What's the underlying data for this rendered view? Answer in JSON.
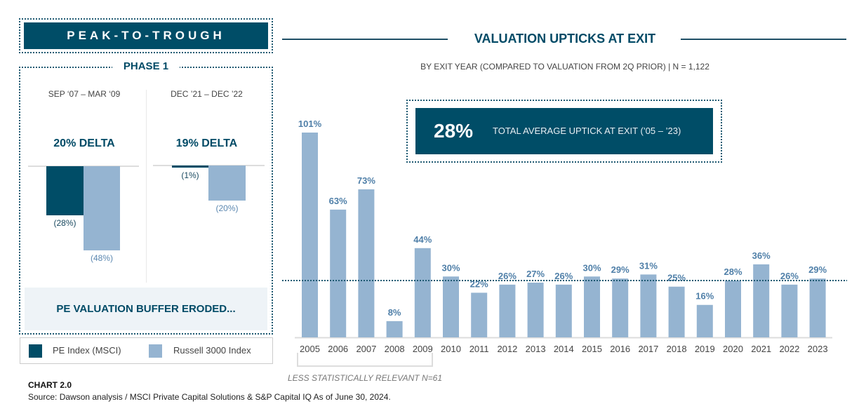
{
  "left_panel": {
    "title": "PEAK-TO-TROUGH",
    "phase_label": "PHASE 1",
    "periods": [
      {
        "range": "SEP ‘07 – MAR ‘09",
        "delta_label": "20% DELTA",
        "pe_index_label": "(28%)",
        "russell_label": "(48%)"
      },
      {
        "range": "DEC ’21 – DEC ’22",
        "delta_label": "19% DELTA",
        "pe_index_label": "(1%)",
        "russell_label": "(20%)"
      }
    ],
    "buffer_text": "PE VALUATION BUFFER ERODED...",
    "legend": [
      {
        "label": "PE Index (MSCI)",
        "color": "#004d67"
      },
      {
        "label": "Russell 3000 Index",
        "color": "#95b4d1"
      }
    ]
  },
  "right_panel": {
    "title": "VALUATION UPTICKS AT EXIT",
    "subtitle": "BY EXIT YEAR (COMPARED TO VALUATION FROM 2Q PRIOR) | N = 1,122",
    "average_value": "28%",
    "average_text": "TOTAL AVERAGE UPTICK AT EXIT (’05 – ’23)",
    "less_relevant_note": "LESS STATISTICALLY RELEVANT N=61"
  },
  "footer": {
    "chart_label": "CHART 2.0",
    "source": "Source: Dawson analysis / MSCI Private Capital Solutions & S&P Capital IQ As of June 30, 2024."
  },
  "colors": {
    "navy": "#004d67",
    "light_blue": "#95b4d1",
    "label_blue": "#4f7fa8"
  },
  "chart_data": [
    {
      "type": "bar",
      "title": "PEAK-TO-TROUGH",
      "subtitle": "PHASE 1",
      "categories": [
        "SEP ‘07 – MAR ‘09",
        "DEC ’21 – DEC ’22"
      ],
      "series": [
        {
          "name": "PE Index (MSCI)",
          "values": [
            -28,
            -1
          ]
        },
        {
          "name": "Russell 3000 Index",
          "values": [
            -48,
            -20
          ]
        }
      ],
      "annotations": [
        "20% DELTA",
        "19% DELTA"
      ],
      "ylim": [
        -50,
        0
      ],
      "legend": "bottom"
    },
    {
      "type": "bar",
      "title": "VALUATION UPTICKS AT EXIT",
      "subtitle": "BY EXIT YEAR (COMPARED TO VALUATION FROM 2Q PRIOR) | N = 1,122",
      "categories": [
        "2005",
        "2006",
        "2007",
        "2008",
        "2009",
        "2010",
        "2011",
        "2012",
        "2013",
        "2014",
        "2015",
        "2016",
        "2017",
        "2018",
        "2019",
        "2020",
        "2021",
        "2022",
        "2023"
      ],
      "values": [
        101,
        63,
        73,
        8,
        44,
        30,
        22,
        26,
        27,
        26,
        30,
        29,
        31,
        25,
        16,
        28,
        36,
        26,
        29
      ],
      "value_labels": [
        "101%",
        "63%",
        "73%",
        "8%",
        "44%",
        "30%",
        "22%",
        "26%",
        "27%",
        "26%",
        "30%",
        "29%",
        "31%",
        "25%",
        "16%",
        "28%",
        "36%",
        "26%",
        "29%"
      ],
      "reference_line": {
        "value": 28,
        "label": "28% TOTAL AVERAGE UPTICK AT EXIT (’05 – ’23)"
      },
      "ylim": [
        0,
        101
      ],
      "grid": false,
      "xlabel": "",
      "ylabel": ""
    }
  ]
}
